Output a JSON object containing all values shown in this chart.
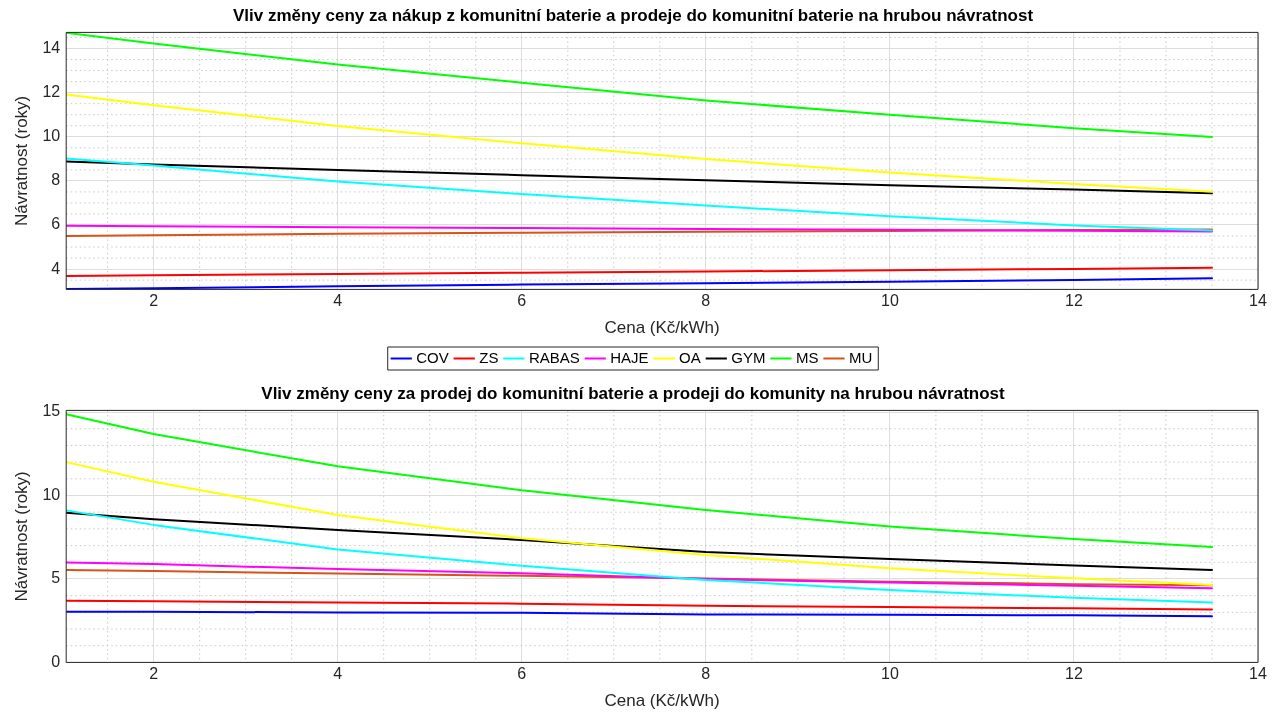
{
  "chart_data": [
    {
      "type": "line",
      "title": "Vliv změny ceny za nákup z komunitní baterie a prodeje do komunitní baterie na hrubou návratnost",
      "xlabel": "Cena (Kč/kWh)",
      "ylabel": "Návratnost (roky)",
      "x": [
        1.05,
        2,
        4,
        6,
        8,
        10,
        12,
        13.5
      ],
      "xlim": [
        1.05,
        14
      ],
      "xticks": [
        2,
        4,
        6,
        8,
        10,
        12,
        14
      ],
      "ylim": [
        3.08,
        14.73
      ],
      "yticks": [
        4,
        6,
        8,
        10,
        12,
        14
      ],
      "grid": true,
      "legend": "bottom",
      "line_style": "solid",
      "marker": "none",
      "series": [
        {
          "name": "COV",
          "color": "#0000ff",
          "values": [
            3.1,
            3.13,
            3.22,
            3.3,
            3.36,
            3.43,
            3.51,
            3.58
          ]
        },
        {
          "name": "ZS",
          "color": "#ff0000",
          "values": [
            3.69,
            3.72,
            3.78,
            3.84,
            3.89,
            3.95,
            4.01,
            4.06
          ]
        },
        {
          "name": "RABAS",
          "color": "#00ffff",
          "values": [
            9.01,
            8.7,
            7.97,
            7.4,
            6.88,
            6.4,
            5.98,
            5.75
          ]
        },
        {
          "name": "HAJE",
          "color": "#ff00ff",
          "values": [
            5.96,
            5.94,
            5.9,
            5.86,
            5.82,
            5.78,
            5.74,
            5.71
          ]
        },
        {
          "name": "OA",
          "color": "#ffff00",
          "values": [
            11.91,
            11.43,
            10.49,
            9.7,
            8.99,
            8.38,
            7.86,
            7.51
          ]
        },
        {
          "name": "GYM",
          "color": "#000000",
          "values": [
            8.88,
            8.74,
            8.49,
            8.26,
            8.03,
            7.8,
            7.61,
            7.44
          ]
        },
        {
          "name": "MS",
          "color": "#00ff00",
          "values": [
            14.71,
            14.23,
            13.27,
            12.45,
            11.64,
            11.0,
            10.39,
            9.99
          ]
        },
        {
          "name": "MU",
          "color": "#d95319",
          "values": [
            5.5,
            5.53,
            5.6,
            5.65,
            5.69,
            5.73,
            5.77,
            5.8
          ]
        }
      ]
    },
    {
      "type": "line",
      "title": "Vliv změny ceny za prodej do komunitní baterie a prodeji do komunity na hrubou návratnost",
      "xlabel": "Cena (Kč/kWh)",
      "ylabel": "Návratnost (roky)",
      "x": [
        1.05,
        2,
        4,
        6,
        8,
        10,
        12,
        13.5
      ],
      "xlim": [
        1.05,
        14
      ],
      "xticks": [
        2,
        4,
        6,
        8,
        10,
        12,
        14
      ],
      "ylim": [
        0,
        15.1
      ],
      "yticks": [
        0,
        5,
        10,
        15
      ],
      "grid": true,
      "line_style": "solid",
      "marker": "none",
      "series": [
        {
          "color": "#0000ff",
          "values": [
            3.04,
            3.04,
            2.99,
            2.97,
            2.87,
            2.85,
            2.82,
            2.77
          ]
        },
        {
          "color": "#ff0000",
          "values": [
            3.69,
            3.67,
            3.59,
            3.52,
            3.39,
            3.32,
            3.24,
            3.17
          ]
        },
        {
          "color": "#00ffff",
          "values": [
            9.11,
            8.24,
            6.76,
            5.79,
            4.94,
            4.34,
            3.87,
            3.59
          ]
        },
        {
          "color": "#ff00ff",
          "values": [
            5.99,
            5.89,
            5.59,
            5.34,
            4.99,
            4.79,
            4.59,
            4.44
          ]
        },
        {
          "color": "#ffff00",
          "values": [
            12.0,
            10.83,
            8.83,
            7.44,
            6.44,
            5.64,
            5.04,
            4.64
          ]
        },
        {
          "color": "#000000",
          "values": [
            8.96,
            8.58,
            7.94,
            7.34,
            6.61,
            6.19,
            5.81,
            5.54
          ]
        },
        {
          "color": "#00ff00",
          "values": [
            14.87,
            13.68,
            11.75,
            10.31,
            9.13,
            8.14,
            7.39,
            6.91
          ]
        },
        {
          "color": "#d95319",
          "values": [
            5.54,
            5.47,
            5.32,
            5.19,
            5.02,
            4.84,
            4.69,
            4.62
          ]
        }
      ]
    }
  ]
}
